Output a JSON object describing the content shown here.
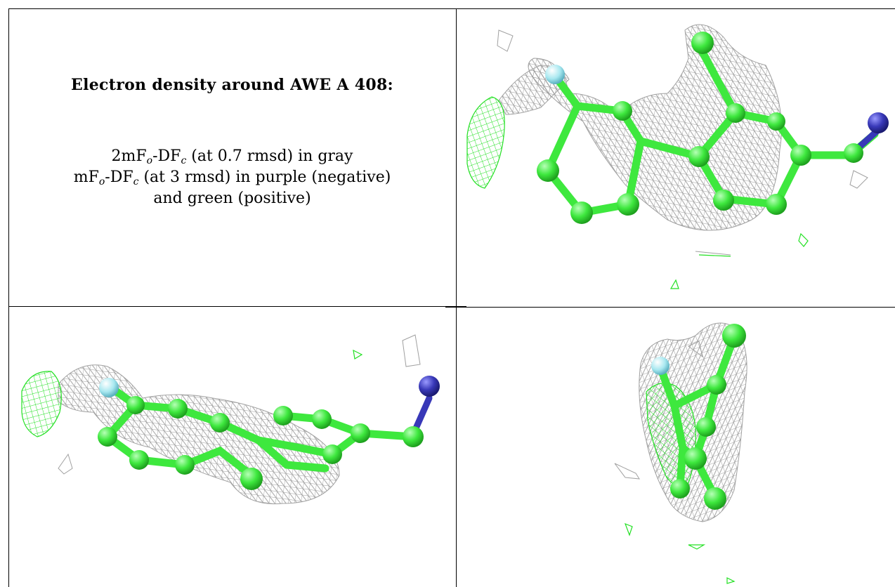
{
  "caption": {
    "title": "Electron density around AWE A 408:",
    "line1": {
      "prefix": "2mF",
      "sub1": "o",
      "mid": "-DF",
      "sub2": "c",
      "suffix": " (at 0.7 rmsd) in gray"
    },
    "line2": {
      "prefix": "mF",
      "sub1": "o",
      "mid": "-DF",
      "sub2": "c",
      "suffix": " (at 3 rmsd) in purple (negative)"
    },
    "line3": "and green (positive)"
  },
  "colors": {
    "carbon": "#3ee83e",
    "mesh_2fofc": "#9a9a9a",
    "mesh_positive": "#22e022",
    "nitrogen": "#3838b8",
    "fluorine": "#a8e8f0",
    "grid": "#000000"
  },
  "views": [
    "top-right view",
    "bottom-left view",
    "bottom-right view"
  ]
}
